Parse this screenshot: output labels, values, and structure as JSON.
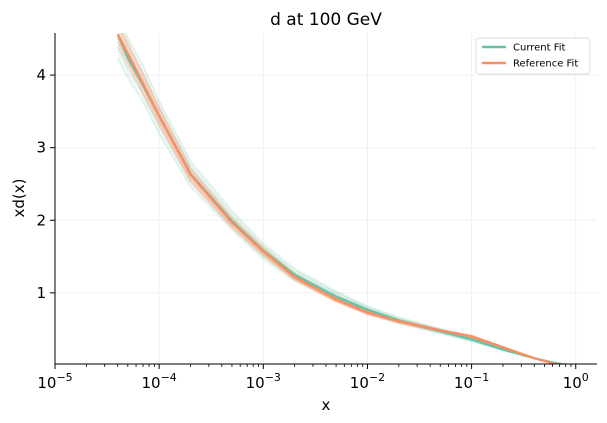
{
  "chart_data": {
    "type": "line",
    "title": "d at 100 GeV",
    "xlabel": "x",
    "ylabel": "xd(x)",
    "xscale": "log",
    "xlim": [
      1e-05,
      1.6
    ],
    "ylim": [
      0.02,
      4.58
    ],
    "grid": true,
    "legend_position": "top-right",
    "x_ticks": [
      {
        "value": 1e-05,
        "base": "10",
        "exp": "−5"
      },
      {
        "value": 0.0001,
        "base": "10",
        "exp": "−4"
      },
      {
        "value": 0.001,
        "base": "10",
        "exp": "−3"
      },
      {
        "value": 0.01,
        "base": "10",
        "exp": "−2"
      },
      {
        "value": 0.1,
        "base": "10",
        "exp": "−1"
      },
      {
        "value": 1,
        "base": "10",
        "exp": "0"
      }
    ],
    "y_ticks": [
      {
        "value": 1,
        "label": "1"
      },
      {
        "value": 2,
        "label": "2"
      },
      {
        "value": 3,
        "label": "3"
      },
      {
        "value": 4,
        "label": "4"
      }
    ],
    "x": [
      4e-05,
      5e-05,
      7e-05,
      0.0001,
      0.0002,
      0.0005,
      0.001,
      0.002,
      0.005,
      0.01,
      0.02,
      0.05,
      0.1,
      0.2,
      0.4,
      0.6,
      0.8
    ],
    "series": [
      {
        "name": "Current Fit",
        "color": "#66c2a5",
        "values": [
          4.56,
          4.24,
          3.86,
          3.44,
          2.64,
          1.99,
          1.58,
          1.25,
          0.95,
          0.77,
          0.62,
          0.47,
          0.36,
          0.22,
          0.1,
          0.04,
          0.01
        ]
      },
      {
        "name": "Reference Fit",
        "color": "#fc8d62",
        "values": [
          4.56,
          4.3,
          3.88,
          3.44,
          2.63,
          1.97,
          1.57,
          1.22,
          0.91,
          0.73,
          0.61,
          0.48,
          0.4,
          0.25,
          0.1,
          0.03,
          0.0
        ]
      }
    ],
    "replica_band": {
      "color": "#66c2a5",
      "description_count": 12
    }
  }
}
